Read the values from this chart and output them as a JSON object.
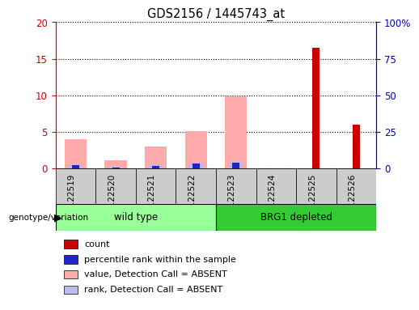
{
  "title": "GDS2156 / 1445743_at",
  "samples": [
    "GSM122519",
    "GSM122520",
    "GSM122521",
    "GSM122522",
    "GSM122523",
    "GSM122524",
    "GSM122525",
    "GSM122526"
  ],
  "wt_indices": [
    0,
    1,
    2,
    3
  ],
  "brg1_indices": [
    4,
    5,
    6,
    7
  ],
  "count_values": [
    0,
    0,
    0,
    0,
    0,
    0,
    16.5,
    6.0
  ],
  "percentile_rank_values": [
    2.0,
    0.4,
    1.8,
    3.2,
    3.8,
    0.15,
    5.5,
    3.2
  ],
  "absent_value_values": [
    4.0,
    1.1,
    3.0,
    5.1,
    9.8,
    0,
    0,
    0
  ],
  "absent_rank_values": [
    2.2,
    0.8,
    2.0,
    3.5,
    4.1,
    0,
    0,
    0
  ],
  "ylim_left": [
    0,
    20
  ],
  "ylim_right": [
    0,
    100
  ],
  "yticks_left": [
    0,
    5,
    10,
    15,
    20
  ],
  "yticks_right": [
    0,
    25,
    50,
    75,
    100
  ],
  "ytick_labels_left": [
    "0",
    "5",
    "10",
    "15",
    "20"
  ],
  "ytick_labels_right": [
    "0",
    "25",
    "50",
    "75",
    "100%"
  ],
  "color_count": "#cc0000",
  "color_percentile": "#2222cc",
  "color_absent_value": "#ffaaaa",
  "color_absent_rank": "#bbbbee",
  "color_group_wt": "#99ff99",
  "color_group_brg1": "#33cc33",
  "color_axis_left": "#cc0000",
  "color_axis_right": "#0000cc",
  "background_color": "#ffffff",
  "tick_area_color": "#cccccc",
  "legend_items": [
    "count",
    "percentile rank within the sample",
    "value, Detection Call = ABSENT",
    "rank, Detection Call = ABSENT"
  ],
  "legend_colors": [
    "#cc0000",
    "#2222cc",
    "#ffaaaa",
    "#bbbbee"
  ]
}
